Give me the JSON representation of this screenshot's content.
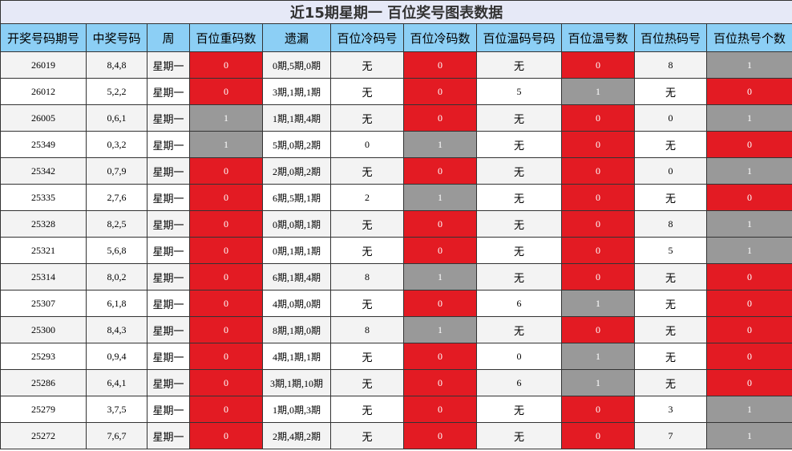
{
  "title": "近15期星期一 百位奖号图表数据",
  "table": {
    "headers": [
      "开奖号码期号",
      "中奖号码",
      "周",
      "百位重码数",
      "遗漏",
      "百位冷码号",
      "百位冷码数",
      "百位温码号码",
      "百位温号数",
      "百位热码号",
      "百位热号个数"
    ],
    "rows": [
      [
        "26019",
        "8,4,8",
        "星期一",
        0,
        "0期,5期,0期",
        "无",
        0,
        "无",
        0,
        "8",
        1
      ],
      [
        "26012",
        "5,2,2",
        "星期一",
        0,
        "3期,1期,1期",
        "无",
        0,
        "5",
        1,
        "无",
        0
      ],
      [
        "26005",
        "0,6,1",
        "星期一",
        1,
        "1期,1期,4期",
        "无",
        0,
        "无",
        0,
        "0",
        1
      ],
      [
        "25349",
        "0,3,2",
        "星期一",
        1,
        "5期,0期,2期",
        "0",
        1,
        "无",
        0,
        "无",
        0
      ],
      [
        "25342",
        "0,7,9",
        "星期一",
        0,
        "2期,0期,2期",
        "无",
        0,
        "无",
        0,
        "0",
        1
      ],
      [
        "25335",
        "2,7,6",
        "星期一",
        0,
        "6期,5期,1期",
        "2",
        1,
        "无",
        0,
        "无",
        0
      ],
      [
        "25328",
        "8,2,5",
        "星期一",
        0,
        "0期,0期,1期",
        "无",
        0,
        "无",
        0,
        "8",
        1
      ],
      [
        "25321",
        "5,6,8",
        "星期一",
        0,
        "0期,1期,1期",
        "无",
        0,
        "无",
        0,
        "5",
        1
      ],
      [
        "25314",
        "8,0,2",
        "星期一",
        0,
        "6期,1期,4期",
        "8",
        1,
        "无",
        0,
        "无",
        0
      ],
      [
        "25307",
        "6,1,8",
        "星期一",
        0,
        "4期,0期,0期",
        "无",
        0,
        "6",
        1,
        "无",
        0
      ],
      [
        "25300",
        "8,4,3",
        "星期一",
        0,
        "8期,1期,0期",
        "8",
        1,
        "无",
        0,
        "无",
        0
      ],
      [
        "25293",
        "0,9,4",
        "星期一",
        0,
        "4期,1期,1期",
        "无",
        0,
        "0",
        1,
        "无",
        0
      ],
      [
        "25286",
        "6,4,1",
        "星期一",
        0,
        "3期,1期,10期",
        "无",
        0,
        "6",
        1,
        "无",
        0
      ],
      [
        "25279",
        "3,7,5",
        "星期一",
        0,
        "1期,0期,3期",
        "无",
        0,
        "无",
        0,
        "3",
        1
      ],
      [
        "25272",
        "7,6,7",
        "星期一",
        0,
        "2期,4期,2期",
        "无",
        0,
        "无",
        0,
        "7",
        1
      ]
    ]
  }
}
